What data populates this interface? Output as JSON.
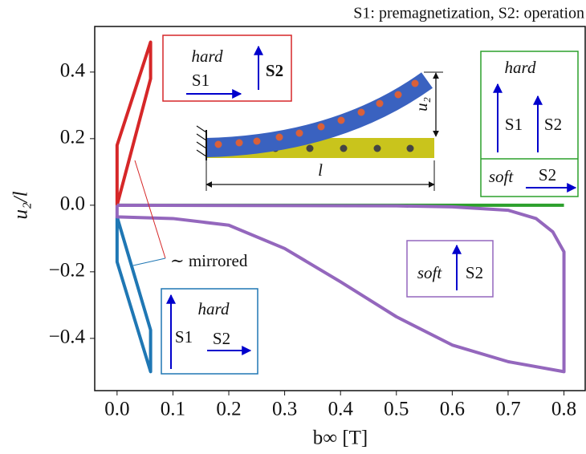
{
  "chart_data": {
    "type": "line",
    "header": "S1: premagnetization, S2: operation",
    "x_label": "b∞ [T]",
    "y_label": "u₂/l",
    "xlim": [
      -0.04,
      0.838
    ],
    "ylim": [
      -0.557,
      0.537
    ],
    "xticks": [
      {
        "value": 0,
        "label": "0.0"
      },
      0.1,
      0.2,
      0.3,
      0.4,
      0.5,
      0.6,
      0.7,
      0.8
    ],
    "yticks": [
      0.4,
      0.2,
      {
        "value": 0,
        "label": "0.0"
      },
      {
        "value": -0.2,
        "label": "−0.2"
      },
      {
        "value": -0.4,
        "label": "−0.4"
      }
    ],
    "series": [
      {
        "color": "#d62728",
        "x": [
          0,
          0,
          0.06,
          0.06,
          0
        ],
        "y": [
          0,
          0.18,
          0.49,
          0.38,
          0
        ]
      },
      {
        "color": "#1f77b4",
        "x": [
          0,
          0,
          0.06,
          0.06,
          0
        ],
        "y": [
          -0.035,
          -0.17,
          -0.5,
          -0.375,
          -0.035
        ]
      },
      {
        "color": "#2ca02c",
        "x": [
          0,
          0.4,
          0.8
        ],
        "y": [
          0,
          0,
          0
        ]
      },
      {
        "color": "#9467bd",
        "x": [
          0,
          0.5,
          0.6,
          0.7,
          0.75,
          0.78,
          0.8,
          0.8,
          0.7,
          0.6,
          0.5,
          0.4,
          0.3,
          0.2,
          0.1,
          0,
          0
        ],
        "y": [
          0,
          -0.002,
          -0.005,
          -0.015,
          -0.04,
          -0.08,
          -0.14,
          -0.5,
          -0.47,
          -0.42,
          -0.335,
          -0.23,
          -0.13,
          -0.06,
          -0.04,
          -0.035,
          0
        ]
      }
    ],
    "annotations": {
      "mirrored": "∼ mirrored",
      "red_box": {
        "title": "hard",
        "s1": "S1",
        "s2": "S2"
      },
      "green_box": {
        "title": "hard",
        "s1": "S1",
        "s2": "S2",
        "lower_title": "soft",
        "lower_s2": "S2"
      },
      "purple_box": {
        "title": "soft",
        "s2": "S2"
      },
      "blue_box": {
        "title": "hard",
        "s1": "S1",
        "s2": "S2"
      },
      "inset": {
        "deflection": "u₂",
        "length": "l"
      }
    }
  }
}
